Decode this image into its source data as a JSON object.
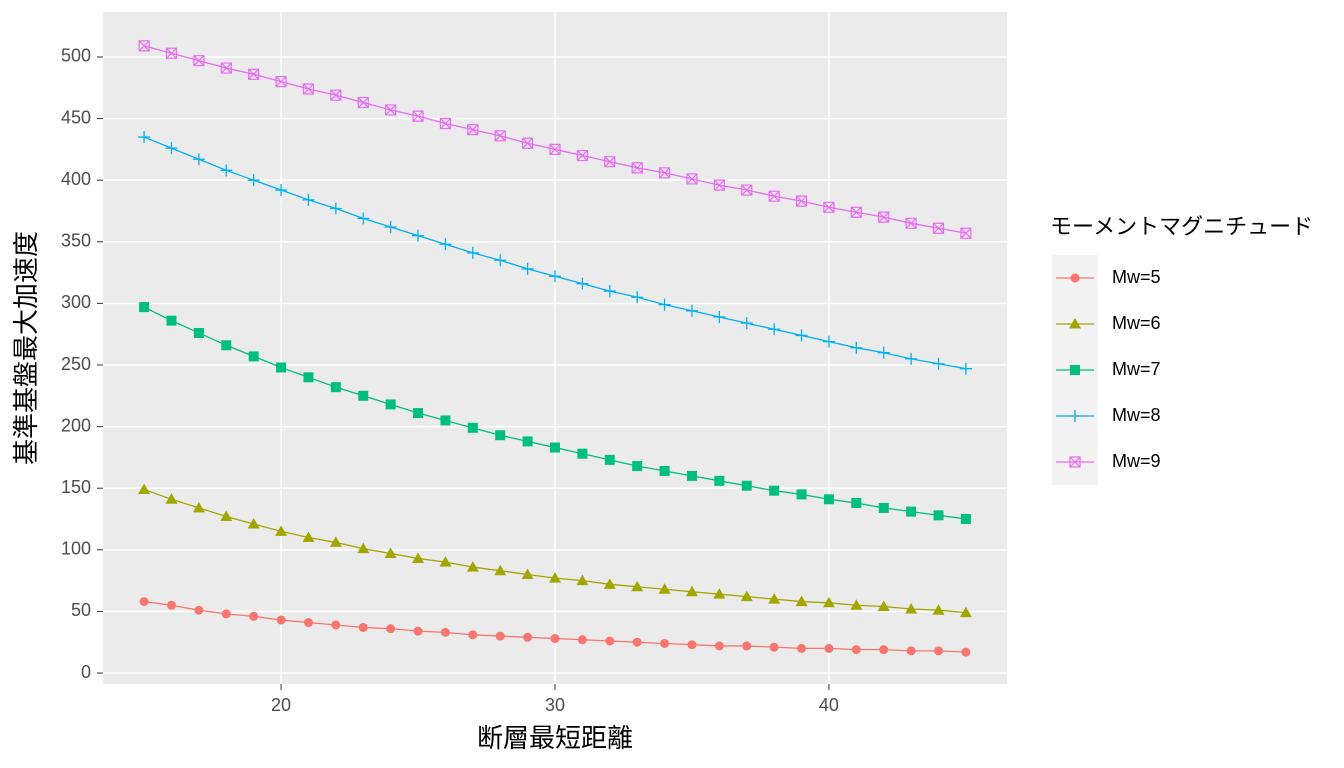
{
  "chart_data": {
    "type": "line",
    "x_label": "断層最短距離",
    "y_label": "基準基盤最大加速度",
    "legend_title": "モーメントマグニチュード",
    "legend": "right",
    "grid": true,
    "x": [
      15,
      16,
      17,
      18,
      19,
      20,
      21,
      22,
      23,
      24,
      25,
      26,
      27,
      28,
      29,
      30,
      31,
      32,
      33,
      34,
      35,
      36,
      37,
      38,
      39,
      40,
      41,
      42,
      43,
      44,
      45
    ],
    "xlim": [
      13.5,
      46.5
    ],
    "xticks": [
      20,
      30,
      40
    ],
    "ylim": [
      -8.9,
      536.5
    ],
    "yticks": [
      0,
      50,
      100,
      150,
      200,
      250,
      300,
      350,
      400,
      450,
      500
    ],
    "series": [
      {
        "name": "Mw=5",
        "color": "#F8766D",
        "shape": "circle",
        "values": [
          58,
          55,
          51,
          48,
          46,
          43,
          41,
          39,
          37,
          36,
          34,
          33,
          31,
          30,
          29,
          28,
          27,
          26,
          25,
          24,
          23,
          22,
          22,
          21,
          20,
          20,
          19,
          19,
          18,
          18,
          17
        ]
      },
      {
        "name": "Mw=6",
        "color": "#A3A500",
        "shape": "triangle",
        "values": [
          149,
          141,
          134,
          127,
          121,
          115,
          110,
          106,
          101,
          97,
          93,
          90,
          86,
          83,
          80,
          77,
          75,
          72,
          70,
          68,
          66,
          64,
          62,
          60,
          58,
          57,
          55,
          54,
          52,
          51,
          49
        ]
      },
      {
        "name": "Mw=7",
        "color": "#00BF7D",
        "shape": "square",
        "values": [
          297,
          286,
          276,
          266,
          257,
          248,
          240,
          232,
          225,
          218,
          211,
          205,
          199,
          193,
          188,
          183,
          178,
          173,
          168,
          164,
          160,
          156,
          152,
          148,
          145,
          141,
          138,
          134,
          131,
          128,
          125
        ]
      },
      {
        "name": "Mw=8",
        "color": "#00B0F6",
        "shape": "plus",
        "values": [
          435,
          426,
          417,
          408,
          400,
          392,
          384,
          377,
          369,
          362,
          355,
          348,
          341,
          335,
          328,
          322,
          316,
          310,
          305,
          299,
          294,
          289,
          284,
          279,
          274,
          269,
          264,
          260,
          255,
          251,
          247
        ]
      },
      {
        "name": "Mw=9",
        "color": "#E76BF3",
        "shape": "square-cross",
        "values": [
          509,
          503,
          497,
          491,
          486,
          480,
          474,
          469,
          463,
          457,
          452,
          446,
          441,
          436,
          430,
          425,
          420,
          415,
          410,
          406,
          401,
          396,
          392,
          387,
          383,
          378,
          374,
          370,
          365,
          361,
          357
        ]
      }
    ]
  }
}
